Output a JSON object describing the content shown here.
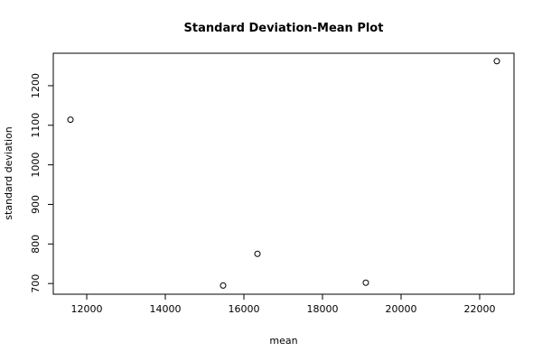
{
  "chart_data": {
    "type": "scatter",
    "title": "Standard Deviation-Mean Plot",
    "x_label": "mean",
    "y_label": "standard deviation",
    "x": [
      11586,
      15471,
      16345,
      19103,
      22437
    ],
    "values": [
      1114,
      695,
      775,
      702,
      1262
    ],
    "color": "#000000",
    "xlim": [
      11149,
      22874
    ],
    "xticks": [
      12000,
      14000,
      16000,
      18000,
      20000,
      22000
    ],
    "ylim": [
      673,
      1282
    ],
    "yticks": [
      700,
      800,
      900,
      1000,
      1100,
      1200
    ],
    "grid": false
  }
}
